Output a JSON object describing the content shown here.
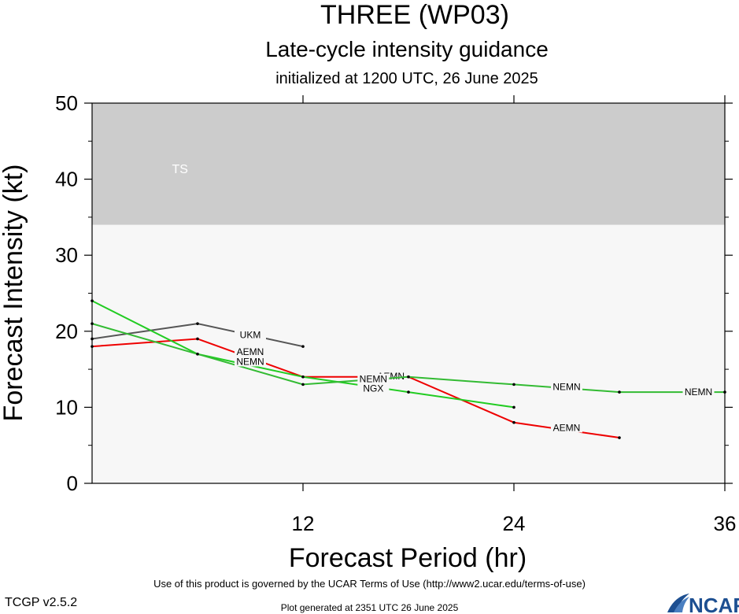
{
  "chart_data": {
    "type": "line",
    "title": "THREE (WP03)",
    "subtitle": "Late-cycle intensity guidance",
    "subtitle2": "initialized at 1200 UTC, 26 June 2025",
    "xlabel": "Forecast Period (hr)",
    "ylabel": "Forecast Intensity (kt)",
    "xlim": [
      0,
      36
    ],
    "ylim": [
      0,
      50
    ],
    "xticks": [
      12,
      24,
      36
    ],
    "xtick_labels": [
      "12",
      "24",
      "36"
    ],
    "yticks": [
      0,
      10,
      20,
      30,
      40,
      50
    ],
    "ytick_labels": [
      "0",
      "10",
      "20",
      "30",
      "40",
      "50"
    ],
    "bands": [
      {
        "label": "",
        "from": 0,
        "to": 34,
        "color": "#f7f7f7"
      },
      {
        "label": "TS",
        "from": 34,
        "to": 50,
        "color": "#cccccc"
      }
    ],
    "series": [
      {
        "name": "UKM",
        "color": "#555555",
        "points": [
          [
            0,
            19
          ],
          [
            6,
            21
          ],
          [
            12,
            18
          ]
        ],
        "label_at": [
          9,
          19.5
        ]
      },
      {
        "name": "AEMN",
        "color": "#ee0000",
        "points": [
          [
            0,
            18
          ],
          [
            6,
            19
          ],
          [
            12,
            14
          ],
          [
            18,
            14
          ],
          [
            24,
            8
          ],
          [
            30,
            6
          ]
        ],
        "label_at": [
          [
            9,
            17.3
          ],
          [
            17,
            14.1
          ],
          [
            27,
            7.3
          ]
        ]
      },
      {
        "name": "NGX",
        "color": "#22cc22",
        "points": [
          [
            0,
            24
          ],
          [
            6,
            17
          ],
          [
            12,
            14
          ],
          [
            18,
            12
          ],
          [
            24,
            10
          ]
        ],
        "label_at": [
          [
            9,
            16.1
          ],
          [
            16,
            12.5
          ]
        ]
      },
      {
        "name": "NEMN",
        "color": "#33bb33",
        "points": [
          [
            0,
            21
          ],
          [
            6,
            17
          ],
          [
            12,
            13
          ],
          [
            18,
            14
          ],
          [
            24,
            13
          ],
          [
            30,
            12
          ],
          [
            36,
            12
          ]
        ],
        "label_at": [
          [
            9,
            16.0
          ],
          [
            16,
            13.7
          ],
          [
            27,
            12.7
          ],
          [
            34.5,
            12.0
          ]
        ]
      }
    ]
  },
  "footer": {
    "terms": "Use of this product is governed by the UCAR Terms of Use (http://www2.ucar.edu/terms-of-use)",
    "version": "TCGP v2.5.2",
    "generated": "Plot generated at 2351 UTC   26 June 2025",
    "logo_text": "NCAR"
  }
}
